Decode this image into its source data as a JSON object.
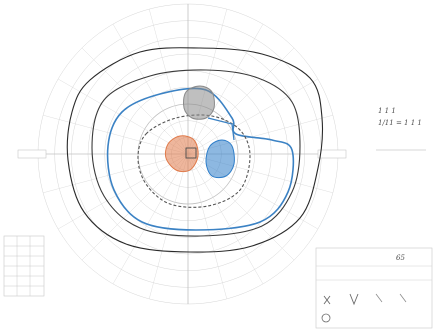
{
  "chart_data": {
    "type": "other",
    "kind": "goldmann-visual-field-perimetry-chart",
    "meridian_spacing_deg": 15,
    "ring_spacing_deg": 10,
    "ring_count": 9,
    "isopters": [
      {
        "color": "#2a2a2a",
        "style": "solid",
        "role": "outer isopter"
      },
      {
        "color": "#3a3a3a",
        "style": "solid",
        "role": "second isopter"
      },
      {
        "color": "#3b82c4",
        "style": "solid",
        "role": "blue isopter"
      },
      {
        "color": "#555555",
        "style": "dashed",
        "role": "inner isopter"
      }
    ],
    "scotomas": [
      {
        "fill": "#8a8a8a",
        "role": "grey scotoma (superior)"
      },
      {
        "fill": "#e07a4a",
        "role": "orange scotoma (central-left)"
      },
      {
        "fill": "#2f7ec9",
        "role": "blue scotoma (central-right)"
      }
    ]
  },
  "annotation": {
    "line1": "1 1 1",
    "line2": "1/11 = 1 1 1"
  },
  "corner_box": {
    "number": "65"
  }
}
